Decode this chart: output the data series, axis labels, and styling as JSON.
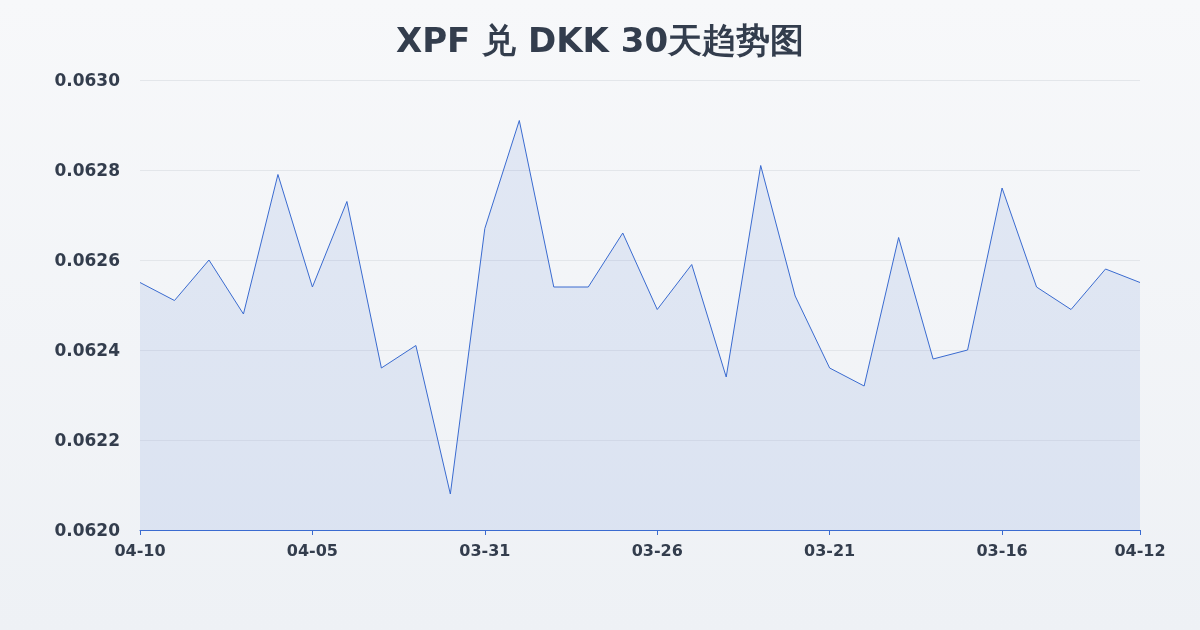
{
  "chart_data": {
    "type": "area",
    "title": "XPF 兑 DKK 30天趋势图",
    "categories": [
      "04-10",
      null,
      null,
      null,
      null,
      "04-05",
      null,
      null,
      null,
      null,
      "03-31",
      null,
      null,
      null,
      null,
      "03-26",
      null,
      null,
      null,
      null,
      "03-21",
      null,
      null,
      null,
      null,
      "03-16",
      null,
      null,
      null,
      "04-12"
    ],
    "series": [
      {
        "color": "#3a6bd0",
        "values": [
          0.06255,
          0.06251,
          0.0626,
          0.06248,
          0.06279,
          0.06254,
          0.06273,
          0.06236,
          0.06241,
          0.06208,
          0.06267,
          0.06291,
          0.06254,
          0.06254,
          0.06266,
          0.06249,
          0.06259,
          0.06234,
          0.06281,
          0.06252,
          0.06236,
          0.06232,
          0.06265,
          0.06238,
          0.0624,
          0.06276,
          0.06254,
          0.06249,
          0.06258,
          0.06255
        ]
      }
    ],
    "ylim": [
      0.062,
      0.063
    ],
    "yticks": [
      {
        "value": 0.062,
        "label": "0.0620"
      },
      0.0622,
      0.0624,
      0.0626,
      0.0628,
      {
        "value": 0.063,
        "label": "0.0630"
      }
    ],
    "grid": "y",
    "marker": "none",
    "line_style": "solid"
  }
}
